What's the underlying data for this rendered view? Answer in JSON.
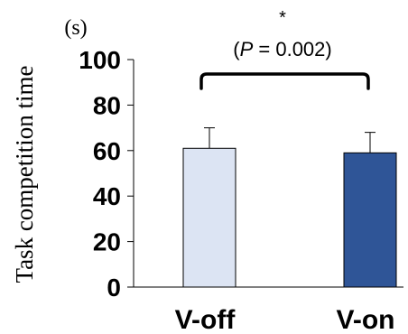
{
  "chart_data": {
    "type": "bar",
    "categories": [
      "V-off",
      "V-on"
    ],
    "values": [
      61,
      59
    ],
    "error_bars": [
      9,
      9
    ],
    "ylim": [
      0,
      100
    ],
    "yticks": [
      0,
      20,
      40,
      60,
      80,
      100
    ],
    "ylabel": "Task competition time",
    "unit_label": "(s)",
    "xlabel": "",
    "grid": false,
    "colors": [
      "#dce4f3",
      "#2f5597"
    ],
    "annotation": {
      "star": "*",
      "p_prefix": "(",
      "p_symbol": "P",
      "p_value": " = 0.002)"
    }
  }
}
